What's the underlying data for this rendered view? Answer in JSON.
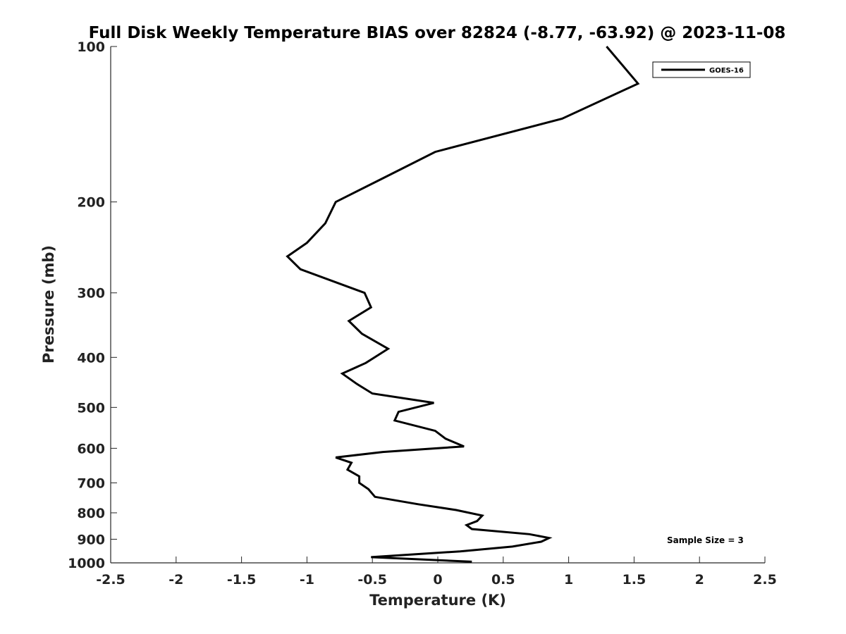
{
  "chart_data": {
    "type": "line",
    "title": "Full Disk Weekly Temperature BIAS over 82824 (-8.77, -63.92) @ 2023-11-08",
    "xlabel": "Temperature (K)",
    "ylabel": "Pressure (mb)",
    "xlim": [
      -2.5,
      2.5
    ],
    "ylim": [
      1000,
      100
    ],
    "y_scale": "log",
    "y_reversed": true,
    "x_ticks": [
      "-2.5",
      "-2",
      "-1.5",
      "-1",
      "-0.5",
      "0",
      "0.5",
      "1",
      "1.5",
      "2",
      "2.5"
    ],
    "y_ticks": [
      "100",
      "200",
      "300",
      "400",
      "500",
      "600",
      "700",
      "800",
      "900",
      "1000"
    ],
    "grid": false,
    "legend": {
      "position": "top-right",
      "entries": [
        "GOES-16"
      ]
    },
    "annotation": "Sample Size = 3",
    "series": [
      {
        "name": "GOES-16",
        "color": "#000000",
        "points": [
          [
            1.29,
            100
          ],
          [
            1.53,
            118
          ],
          [
            0.95,
            138
          ],
          [
            -0.02,
            160
          ],
          [
            -0.42,
            180
          ],
          [
            -0.78,
            200
          ],
          [
            -0.86,
            220
          ],
          [
            -1.0,
            240
          ],
          [
            -1.15,
            255
          ],
          [
            -1.05,
            270
          ],
          [
            -0.56,
            300
          ],
          [
            -0.51,
            320
          ],
          [
            -0.68,
            340
          ],
          [
            -0.58,
            360
          ],
          [
            -0.38,
            385
          ],
          [
            -0.55,
            410
          ],
          [
            -0.73,
            430
          ],
          [
            -0.62,
            450
          ],
          [
            -0.5,
            470
          ],
          [
            -0.03,
            490
          ],
          [
            -0.3,
            510
          ],
          [
            -0.33,
            530
          ],
          [
            -0.02,
            555
          ],
          [
            0.06,
            575
          ],
          [
            0.2,
            595
          ],
          [
            -0.42,
            610
          ],
          [
            -0.78,
            625
          ],
          [
            -0.66,
            640
          ],
          [
            -0.69,
            660
          ],
          [
            -0.6,
            680
          ],
          [
            -0.6,
            700
          ],
          [
            -0.53,
            720
          ],
          [
            -0.48,
            745
          ],
          [
            -0.15,
            770
          ],
          [
            0.14,
            790
          ],
          [
            0.34,
            810
          ],
          [
            0.3,
            830
          ],
          [
            0.22,
            845
          ],
          [
            0.26,
            860
          ],
          [
            0.7,
            880
          ],
          [
            0.85,
            895
          ],
          [
            0.79,
            910
          ],
          [
            0.57,
            930
          ],
          [
            0.17,
            950
          ],
          [
            -0.51,
            975
          ],
          [
            0.26,
            995
          ]
        ]
      }
    ]
  }
}
